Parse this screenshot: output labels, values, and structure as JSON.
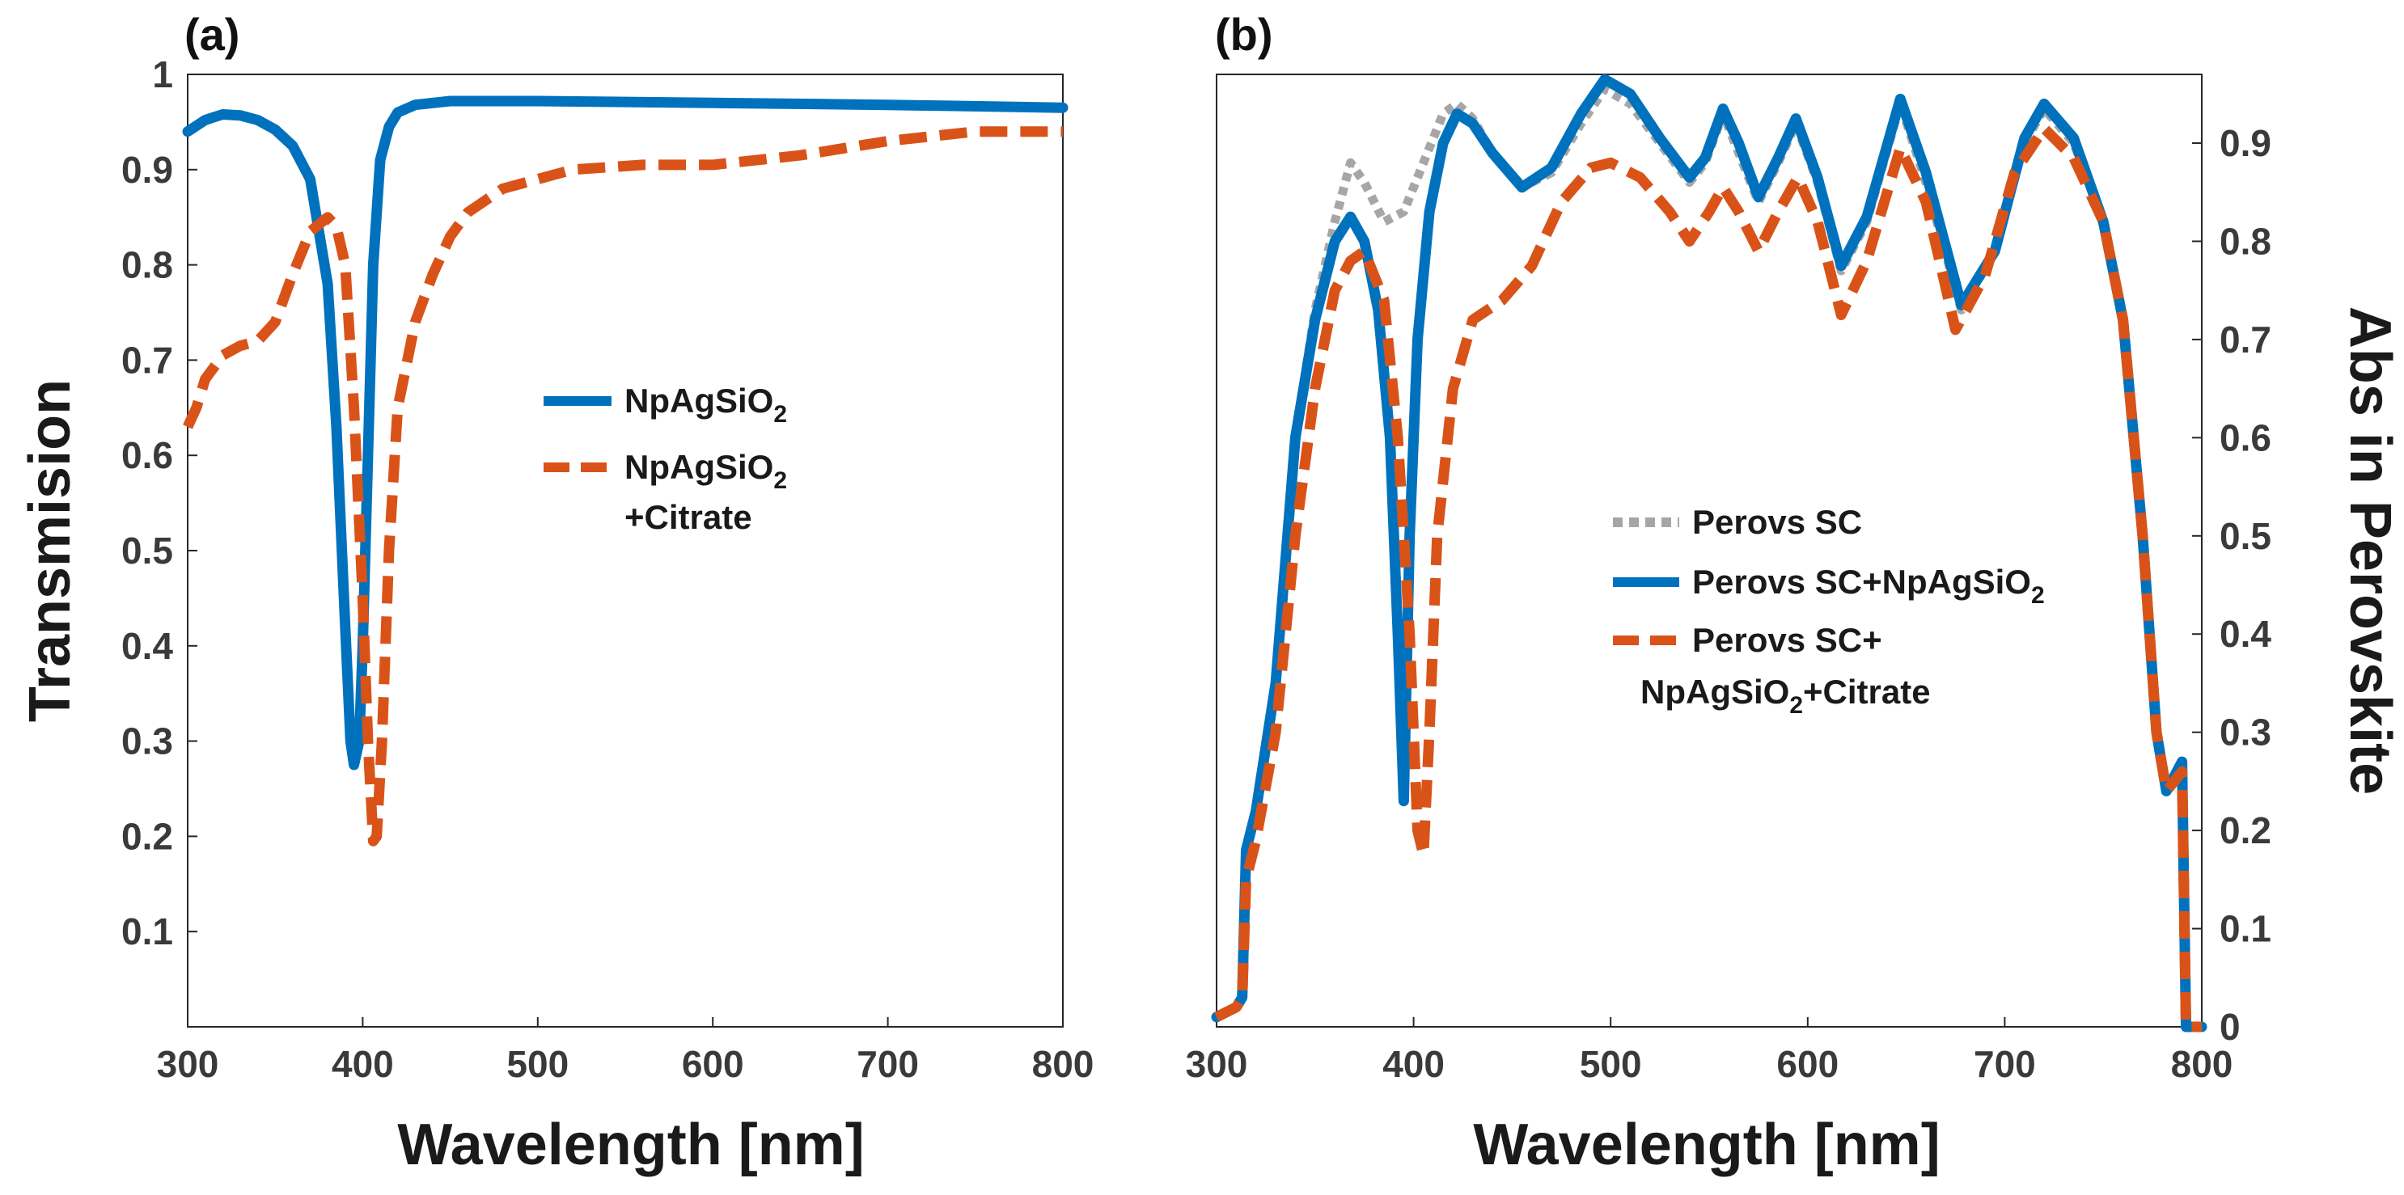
{
  "chart_data": [
    {
      "panel_label": "(a)",
      "type": "line",
      "xlabel": "Wavelength [nm]",
      "ylabel": "Transmision",
      "xlim": [
        300,
        800
      ],
      "ylim": [
        0,
        1
      ],
      "xticks": [
        "300",
        "400",
        "500",
        "600",
        "700",
        "800"
      ],
      "yticks": [
        "0.1",
        "0.2",
        "0.3",
        "0.4",
        "0.5",
        "0.6",
        "0.7",
        "0.8",
        "0.9",
        "1"
      ],
      "legend": [
        {
          "label": "NpAgSiO",
          "subscript": "2",
          "extra": ""
        },
        {
          "label": "NpAgSiO",
          "subscript": "2",
          "extra": "+Citrate"
        }
      ],
      "series": [
        {
          "name": "NpAgSiO2",
          "color": "#0072BD",
          "style": "solid",
          "points": [
            [
              300,
              0.94
            ],
            [
              310,
              0.952
            ],
            [
              320,
              0.958
            ],
            [
              330,
              0.957
            ],
            [
              340,
              0.952
            ],
            [
              350,
              0.942
            ],
            [
              360,
              0.925
            ],
            [
              370,
              0.89
            ],
            [
              380,
              0.78
            ],
            [
              385,
              0.63
            ],
            [
              390,
              0.42
            ],
            [
              393,
              0.3
            ],
            [
              395,
              0.275
            ],
            [
              398,
              0.3
            ],
            [
              400,
              0.4
            ],
            [
              403,
              0.6
            ],
            [
              406,
              0.8
            ],
            [
              410,
              0.91
            ],
            [
              415,
              0.945
            ],
            [
              420,
              0.96
            ],
            [
              430,
              0.968
            ],
            [
              450,
              0.972
            ],
            [
              500,
              0.972
            ],
            [
              600,
              0.97
            ],
            [
              700,
              0.968
            ],
            [
              800,
              0.965
            ]
          ]
        },
        {
          "name": "NpAgSiO2+Citrate",
          "color": "#D95319",
          "style": "dashed",
          "points": [
            [
              300,
              0.63
            ],
            [
              305,
              0.65
            ],
            [
              310,
              0.68
            ],
            [
              320,
              0.705
            ],
            [
              330,
              0.715
            ],
            [
              340,
              0.72
            ],
            [
              350,
              0.74
            ],
            [
              360,
              0.79
            ],
            [
              370,
              0.835
            ],
            [
              380,
              0.85
            ],
            [
              385,
              0.84
            ],
            [
              390,
              0.8
            ],
            [
              395,
              0.65
            ],
            [
              400,
              0.45
            ],
            [
              403,
              0.3
            ],
            [
              406,
              0.195
            ],
            [
              408,
              0.2
            ],
            [
              411,
              0.3
            ],
            [
              415,
              0.5
            ],
            [
              420,
              0.65
            ],
            [
              430,
              0.74
            ],
            [
              440,
              0.79
            ],
            [
              450,
              0.83
            ],
            [
              460,
              0.855
            ],
            [
              480,
              0.88
            ],
            [
              500,
              0.89
            ],
            [
              520,
              0.9
            ],
            [
              560,
              0.905
            ],
            [
              600,
              0.905
            ],
            [
              650,
              0.915
            ],
            [
              700,
              0.93
            ],
            [
              750,
              0.94
            ],
            [
              800,
              0.94
            ]
          ]
        }
      ]
    },
    {
      "panel_label": "(b)",
      "type": "line",
      "xlabel": "Wavelength [nm]",
      "ylabel": "Abs in Perovskite",
      "y_axis_side": "right",
      "xlim": [
        300,
        800
      ],
      "ylim": [
        0,
        0.97
      ],
      "xticks": [
        "300",
        "400",
        "500",
        "600",
        "700",
        "800"
      ],
      "yticks": [
        "0",
        "0.1",
        "0.2",
        "0.3",
        "0.4",
        "0.5",
        "0.6",
        "0.7",
        "0.8",
        "0.9"
      ],
      "legend": [
        {
          "label": "Perovs SC",
          "subscript": "",
          "extra": ""
        },
        {
          "label": "Perovs SC+NpAgSiO",
          "subscript": "2",
          "extra": ""
        },
        {
          "label": "Perovs SC+",
          "subscript": "",
          "extra": ""
        },
        {
          "label": "NpAgSiO",
          "subscript": "2",
          "extra": "+Citrate"
        }
      ],
      "series": [
        {
          "name": "Perovs SC",
          "color": "#A6A6A6",
          "style": "dotted",
          "points": [
            [
              300,
              0.01
            ],
            [
              310,
              0.02
            ],
            [
              313,
              0.03
            ],
            [
              315,
              0.18
            ],
            [
              320,
              0.22
            ],
            [
              330,
              0.35
            ],
            [
              340,
              0.6
            ],
            [
              350,
              0.73
            ],
            [
              360,
              0.82
            ],
            [
              368,
              0.88
            ],
            [
              375,
              0.86
            ],
            [
              385,
              0.82
            ],
            [
              395,
              0.83
            ],
            [
              405,
              0.88
            ],
            [
              415,
              0.93
            ],
            [
              422,
              0.94
            ],
            [
              430,
              0.925
            ],
            [
              440,
              0.89
            ],
            [
              455,
              0.855
            ],
            [
              470,
              0.87
            ],
            [
              485,
              0.92
            ],
            [
              497,
              0.955
            ],
            [
              510,
              0.94
            ],
            [
              525,
              0.9
            ],
            [
              540,
              0.86
            ],
            [
              548,
              0.88
            ],
            [
              557,
              0.93
            ],
            [
              565,
              0.89
            ],
            [
              575,
              0.84
            ],
            [
              585,
              0.88
            ],
            [
              594,
              0.92
            ],
            [
              605,
              0.86
            ],
            [
              617,
              0.77
            ],
            [
              630,
              0.82
            ],
            [
              647,
              0.94
            ],
            [
              660,
              0.86
            ],
            [
              678,
              0.73
            ],
            [
              695,
              0.79
            ],
            [
              710,
              0.9
            ],
            [
              720,
              0.935
            ],
            [
              735,
              0.9
            ],
            [
              750,
              0.82
            ],
            [
              760,
              0.72
            ],
            [
              770,
              0.5
            ],
            [
              777,
              0.3
            ],
            [
              782,
              0.24
            ],
            [
              790,
              0.27
            ],
            [
              792,
              0.0
            ],
            [
              800,
              0.0
            ]
          ]
        },
        {
          "name": "Perovs SC+NpAgSiO2",
          "color": "#0072BD",
          "style": "solid",
          "points": [
            [
              300,
              0.01
            ],
            [
              310,
              0.02
            ],
            [
              313,
              0.03
            ],
            [
              315,
              0.18
            ],
            [
              320,
              0.22
            ],
            [
              330,
              0.35
            ],
            [
              340,
              0.6
            ],
            [
              350,
              0.72
            ],
            [
              360,
              0.8
            ],
            [
              368,
              0.825
            ],
            [
              375,
              0.8
            ],
            [
              382,
              0.73
            ],
            [
              388,
              0.6
            ],
            [
              392,
              0.4
            ],
            [
              395,
              0.23
            ],
            [
              398,
              0.5
            ],
            [
              402,
              0.7
            ],
            [
              408,
              0.83
            ],
            [
              415,
              0.9
            ],
            [
              422,
              0.93
            ],
            [
              430,
              0.92
            ],
            [
              440,
              0.89
            ],
            [
              455,
              0.855
            ],
            [
              470,
              0.875
            ],
            [
              485,
              0.93
            ],
            [
              497,
              0.965
            ],
            [
              510,
              0.95
            ],
            [
              525,
              0.905
            ],
            [
              540,
              0.865
            ],
            [
              548,
              0.885
            ],
            [
              557,
              0.935
            ],
            [
              565,
              0.9
            ],
            [
              575,
              0.845
            ],
            [
              585,
              0.885
            ],
            [
              594,
              0.925
            ],
            [
              605,
              0.865
            ],
            [
              617,
              0.775
            ],
            [
              630,
              0.825
            ],
            [
              647,
              0.945
            ],
            [
              660,
              0.87
            ],
            [
              678,
              0.735
            ],
            [
              695,
              0.79
            ],
            [
              710,
              0.905
            ],
            [
              720,
              0.94
            ],
            [
              735,
              0.905
            ],
            [
              750,
              0.82
            ],
            [
              760,
              0.72
            ],
            [
              770,
              0.5
            ],
            [
              777,
              0.3
            ],
            [
              782,
              0.24
            ],
            [
              790,
              0.27
            ],
            [
              792,
              0.0
            ],
            [
              800,
              0.0
            ]
          ]
        },
        {
          "name": "Perovs SC+NpAgSiO2+Citrate",
          "color": "#D95319",
          "style": "dashed",
          "points": [
            [
              300,
              0.01
            ],
            [
              310,
              0.02
            ],
            [
              313,
              0.03
            ],
            [
              315,
              0.15
            ],
            [
              320,
              0.19
            ],
            [
              330,
              0.3
            ],
            [
              340,
              0.5
            ],
            [
              350,
              0.65
            ],
            [
              360,
              0.75
            ],
            [
              368,
              0.78
            ],
            [
              375,
              0.79
            ],
            [
              385,
              0.74
            ],
            [
              392,
              0.6
            ],
            [
              398,
              0.4
            ],
            [
              402,
              0.2
            ],
            [
              405,
              0.175
            ],
            [
              408,
              0.3
            ],
            [
              412,
              0.5
            ],
            [
              420,
              0.65
            ],
            [
              430,
              0.72
            ],
            [
              445,
              0.74
            ],
            [
              460,
              0.775
            ],
            [
              475,
              0.84
            ],
            [
              490,
              0.875
            ],
            [
              500,
              0.88
            ],
            [
              515,
              0.865
            ],
            [
              530,
              0.83
            ],
            [
              540,
              0.8
            ],
            [
              550,
              0.83
            ],
            [
              557,
              0.855
            ],
            [
              565,
              0.83
            ],
            [
              575,
              0.79
            ],
            [
              585,
              0.83
            ],
            [
              595,
              0.865
            ],
            [
              605,
              0.82
            ],
            [
              617,
              0.725
            ],
            [
              630,
              0.78
            ],
            [
              647,
              0.895
            ],
            [
              660,
              0.84
            ],
            [
              675,
              0.71
            ],
            [
              690,
              0.765
            ],
            [
              705,
              0.87
            ],
            [
              720,
              0.915
            ],
            [
              735,
              0.885
            ],
            [
              750,
              0.82
            ],
            [
              760,
              0.72
            ],
            [
              770,
              0.5
            ],
            [
              777,
              0.3
            ],
            [
              782,
              0.24
            ],
            [
              790,
              0.26
            ],
            [
              792,
              0.0
            ],
            [
              800,
              0.0
            ]
          ]
        }
      ]
    }
  ]
}
